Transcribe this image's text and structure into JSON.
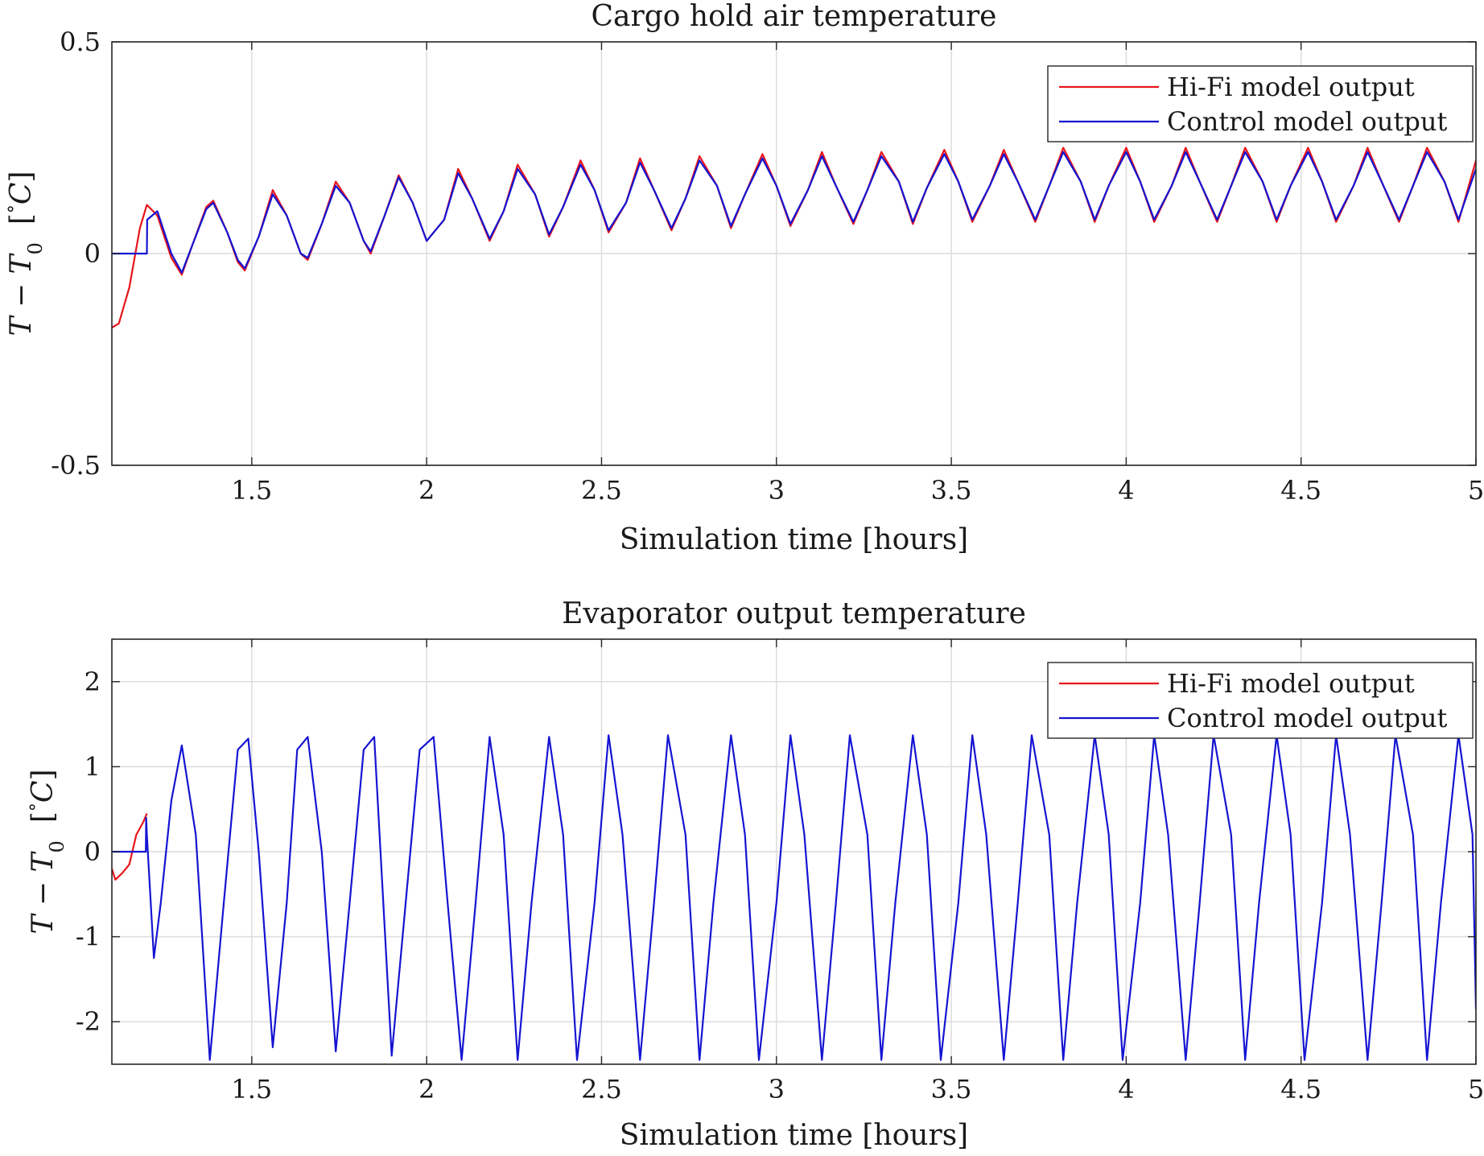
{
  "chart_data": [
    {
      "type": "line",
      "title": "Cargo hold air temperature",
      "xlabel": "Simulation time [hours]",
      "ylabel": {
        "main": "T − T",
        "sub": "0",
        "unit_open": "[",
        "unit_deg": "°",
        "unit_var": "C",
        "unit_close": "]"
      },
      "xlim": [
        1.1,
        5
      ],
      "ylim": [
        -0.5,
        0.5
      ],
      "xticks": [
        "1.5",
        "2",
        "2.5",
        "3",
        "3.5",
        "4",
        "4.5",
        "5"
      ],
      "xtick_values": [
        1.5,
        2,
        2.5,
        3,
        3.5,
        4,
        4.5,
        5
      ],
      "yticks": [
        "-0.5",
        "0",
        "0.5"
      ],
      "ytick_values": [
        -0.5,
        0,
        0.5
      ],
      "grid": true,
      "legend_position": "top-right",
      "series": [
        {
          "name": "Hi-Fi model output",
          "color": "#e8141b",
          "x": [
            1.1,
            1.12,
            1.15,
            1.18,
            1.2,
            1.23,
            1.27,
            1.3,
            1.33,
            1.37,
            1.39,
            1.43,
            1.46,
            1.48,
            1.52,
            1.56,
            1.6,
            1.64,
            1.66,
            1.7,
            1.74,
            1.78,
            1.82,
            1.84,
            1.88,
            1.92,
            1.96,
            2.0,
            2.05,
            2.09,
            2.13,
            2.18,
            2.22,
            2.26,
            2.31,
            2.35,
            2.39,
            2.44,
            2.48,
            2.52,
            2.57,
            2.61,
            2.65,
            2.7,
            2.74,
            2.78,
            2.83,
            2.87,
            2.91,
            2.96,
            3.0,
            3.04,
            3.09,
            3.13,
            3.17,
            3.22,
            3.26,
            3.3,
            3.35,
            3.39,
            3.43,
            3.48,
            3.52,
            3.56,
            3.61,
            3.65,
            3.69,
            3.74,
            3.78,
            3.82,
            3.87,
            3.91,
            3.95,
            4.0,
            4.04,
            4.08,
            4.13,
            4.17,
            4.21,
            4.26,
            4.3,
            4.34,
            4.39,
            4.43,
            4.47,
            4.52,
            4.56,
            4.6,
            4.65,
            4.69,
            4.73,
            4.78,
            4.82,
            4.86,
            4.91,
            4.95,
            5.0
          ],
          "y": [
            -0.175,
            -0.165,
            -0.08,
            0.06,
            0.115,
            0.09,
            -0.01,
            -0.05,
            0.02,
            0.11,
            0.125,
            0.05,
            -0.02,
            -0.04,
            0.04,
            0.15,
            0.09,
            0.0,
            -0.015,
            0.07,
            0.17,
            0.12,
            0.03,
            0.0,
            0.09,
            0.185,
            0.12,
            0.03,
            0.08,
            0.2,
            0.13,
            0.03,
            0.1,
            0.21,
            0.14,
            0.04,
            0.11,
            0.22,
            0.15,
            0.05,
            0.12,
            0.225,
            0.15,
            0.055,
            0.13,
            0.23,
            0.16,
            0.06,
            0.14,
            0.235,
            0.16,
            0.065,
            0.15,
            0.24,
            0.16,
            0.07,
            0.15,
            0.24,
            0.17,
            0.07,
            0.155,
            0.245,
            0.17,
            0.075,
            0.16,
            0.245,
            0.17,
            0.075,
            0.16,
            0.25,
            0.17,
            0.075,
            0.16,
            0.25,
            0.17,
            0.075,
            0.16,
            0.25,
            0.17,
            0.075,
            0.16,
            0.25,
            0.17,
            0.075,
            0.16,
            0.25,
            0.17,
            0.075,
            0.16,
            0.25,
            0.17,
            0.075,
            0.16,
            0.25,
            0.17,
            0.075,
            0.22
          ]
        },
        {
          "name": "Control model output",
          "color": "#1414d2",
          "x": [
            1.1,
            1.2,
            1.201,
            1.23,
            1.27,
            1.3,
            1.33,
            1.37,
            1.39,
            1.43,
            1.46,
            1.48,
            1.52,
            1.56,
            1.6,
            1.64,
            1.66,
            1.7,
            1.74,
            1.78,
            1.82,
            1.84,
            1.88,
            1.92,
            1.96,
            2.0,
            2.05,
            2.09,
            2.13,
            2.18,
            2.22,
            2.26,
            2.31,
            2.35,
            2.39,
            2.44,
            2.48,
            2.52,
            2.57,
            2.61,
            2.65,
            2.7,
            2.74,
            2.78,
            2.83,
            2.87,
            2.91,
            2.96,
            3.0,
            3.04,
            3.09,
            3.13,
            3.17,
            3.22,
            3.26,
            3.3,
            3.35,
            3.39,
            3.43,
            3.48,
            3.52,
            3.56,
            3.61,
            3.65,
            3.69,
            3.74,
            3.78,
            3.82,
            3.87,
            3.91,
            3.95,
            4.0,
            4.04,
            4.08,
            4.13,
            4.17,
            4.21,
            4.26,
            4.3,
            4.34,
            4.39,
            4.43,
            4.47,
            4.52,
            4.56,
            4.6,
            4.65,
            4.69,
            4.73,
            4.78,
            4.82,
            4.86,
            4.91,
            4.95,
            5.0
          ],
          "y": [
            0.0,
            0.0,
            0.08,
            0.1,
            0.0,
            -0.045,
            0.02,
            0.105,
            0.12,
            0.05,
            -0.015,
            -0.035,
            0.04,
            0.14,
            0.09,
            0.0,
            -0.01,
            0.07,
            0.16,
            0.12,
            0.03,
            0.005,
            0.09,
            0.18,
            0.12,
            0.03,
            0.08,
            0.19,
            0.13,
            0.035,
            0.1,
            0.2,
            0.14,
            0.045,
            0.11,
            0.21,
            0.15,
            0.055,
            0.12,
            0.215,
            0.15,
            0.06,
            0.13,
            0.22,
            0.16,
            0.065,
            0.14,
            0.225,
            0.16,
            0.07,
            0.15,
            0.23,
            0.16,
            0.075,
            0.15,
            0.23,
            0.17,
            0.075,
            0.155,
            0.235,
            0.17,
            0.08,
            0.16,
            0.235,
            0.17,
            0.08,
            0.16,
            0.24,
            0.17,
            0.08,
            0.16,
            0.24,
            0.17,
            0.08,
            0.16,
            0.24,
            0.17,
            0.08,
            0.16,
            0.24,
            0.17,
            0.08,
            0.16,
            0.24,
            0.17,
            0.08,
            0.16,
            0.24,
            0.17,
            0.08,
            0.16,
            0.24,
            0.17,
            0.08,
            0.2
          ]
        }
      ]
    },
    {
      "type": "line",
      "title": "Evaporator output temperature",
      "xlabel": "Simulation time [hours]",
      "ylabel": {
        "main": "T − T",
        "sub": "0",
        "unit_open": "[",
        "unit_deg": "°",
        "unit_var": "C",
        "unit_close": "]"
      },
      "xlim": [
        1.1,
        5
      ],
      "ylim": [
        -2.5,
        2.5
      ],
      "xticks": [
        "1.5",
        "2",
        "2.5",
        "3",
        "3.5",
        "4",
        "4.5",
        "5"
      ],
      "xtick_values": [
        1.5,
        2,
        2.5,
        3,
        3.5,
        4,
        4.5,
        5
      ],
      "yticks": [
        "-2",
        "-1",
        "0",
        "1",
        "2"
      ],
      "ytick_values": [
        -2,
        -1,
        0,
        1,
        2
      ],
      "grid": true,
      "legend_position": "top-right",
      "series": [
        {
          "name": "Hi-Fi model output",
          "color": "#e8141b",
          "x": [
            1.1,
            1.11,
            1.13,
            1.15,
            1.17,
            1.19,
            1.2
          ],
          "y": [
            -0.2,
            -0.33,
            -0.25,
            -0.15,
            0.2,
            0.35,
            0.45
          ]
        },
        {
          "name": "Control model output",
          "color": "#1414d2",
          "x": [
            1.1,
            1.197,
            1.198,
            1.2,
            1.22,
            1.24,
            1.27,
            1.3,
            1.34,
            1.38,
            1.42,
            1.46,
            1.49,
            1.52,
            1.56,
            1.6,
            1.63,
            1.66,
            1.7,
            1.74,
            1.78,
            1.82,
            1.85,
            1.9,
            1.94,
            1.98,
            2.02,
            2.06,
            2.1,
            2.14,
            2.18,
            2.22,
            2.26,
            2.3,
            2.35,
            2.39,
            2.43,
            2.48,
            2.52,
            2.56,
            2.61,
            2.65,
            2.69,
            2.74,
            2.78,
            2.82,
            2.87,
            2.91,
            2.95,
            3.0,
            3.04,
            3.08,
            3.13,
            3.17,
            3.21,
            3.26,
            3.3,
            3.34,
            3.39,
            3.43,
            3.47,
            3.52,
            3.56,
            3.6,
            3.65,
            3.69,
            3.73,
            3.78,
            3.82,
            3.86,
            3.91,
            3.95,
            3.99,
            4.04,
            4.08,
            4.12,
            4.17,
            4.21,
            4.25,
            4.3,
            4.34,
            4.38,
            4.43,
            4.47,
            4.51,
            4.56,
            4.6,
            4.64,
            4.69,
            4.73,
            4.77,
            4.82,
            4.86,
            4.9,
            4.95,
            4.99,
            5.0
          ],
          "y": [
            0.0,
            0.0,
            0.4,
            0.2,
            -1.25,
            -0.6,
            0.6,
            1.25,
            0.2,
            -2.45,
            -0.6,
            1.2,
            1.33,
            0.0,
            -2.3,
            -0.6,
            1.2,
            1.35,
            0.0,
            -2.35,
            -0.6,
            1.2,
            1.35,
            -2.4,
            -0.6,
            1.2,
            1.35,
            -0.6,
            -2.45,
            -0.6,
            1.35,
            0.2,
            -2.45,
            -0.6,
            1.35,
            0.2,
            -2.45,
            -0.6,
            1.37,
            0.2,
            -2.45,
            -0.6,
            1.37,
            0.2,
            -2.45,
            -0.6,
            1.37,
            0.2,
            -2.45,
            -0.6,
            1.37,
            0.2,
            -2.45,
            -0.6,
            1.37,
            0.2,
            -2.45,
            -0.6,
            1.37,
            0.2,
            -2.45,
            -0.6,
            1.37,
            0.2,
            -2.45,
            -0.6,
            1.37,
            0.2,
            -2.45,
            -0.6,
            1.37,
            0.2,
            -2.45,
            -0.6,
            1.37,
            0.2,
            -2.45,
            -0.6,
            1.37,
            0.2,
            -2.45,
            -0.6,
            1.37,
            0.2,
            -2.45,
            -0.6,
            1.37,
            0.2,
            -2.45,
            -0.6,
            1.37,
            0.2,
            -2.45,
            -0.6,
            1.37,
            0.2,
            -1.85
          ]
        }
      ]
    }
  ]
}
